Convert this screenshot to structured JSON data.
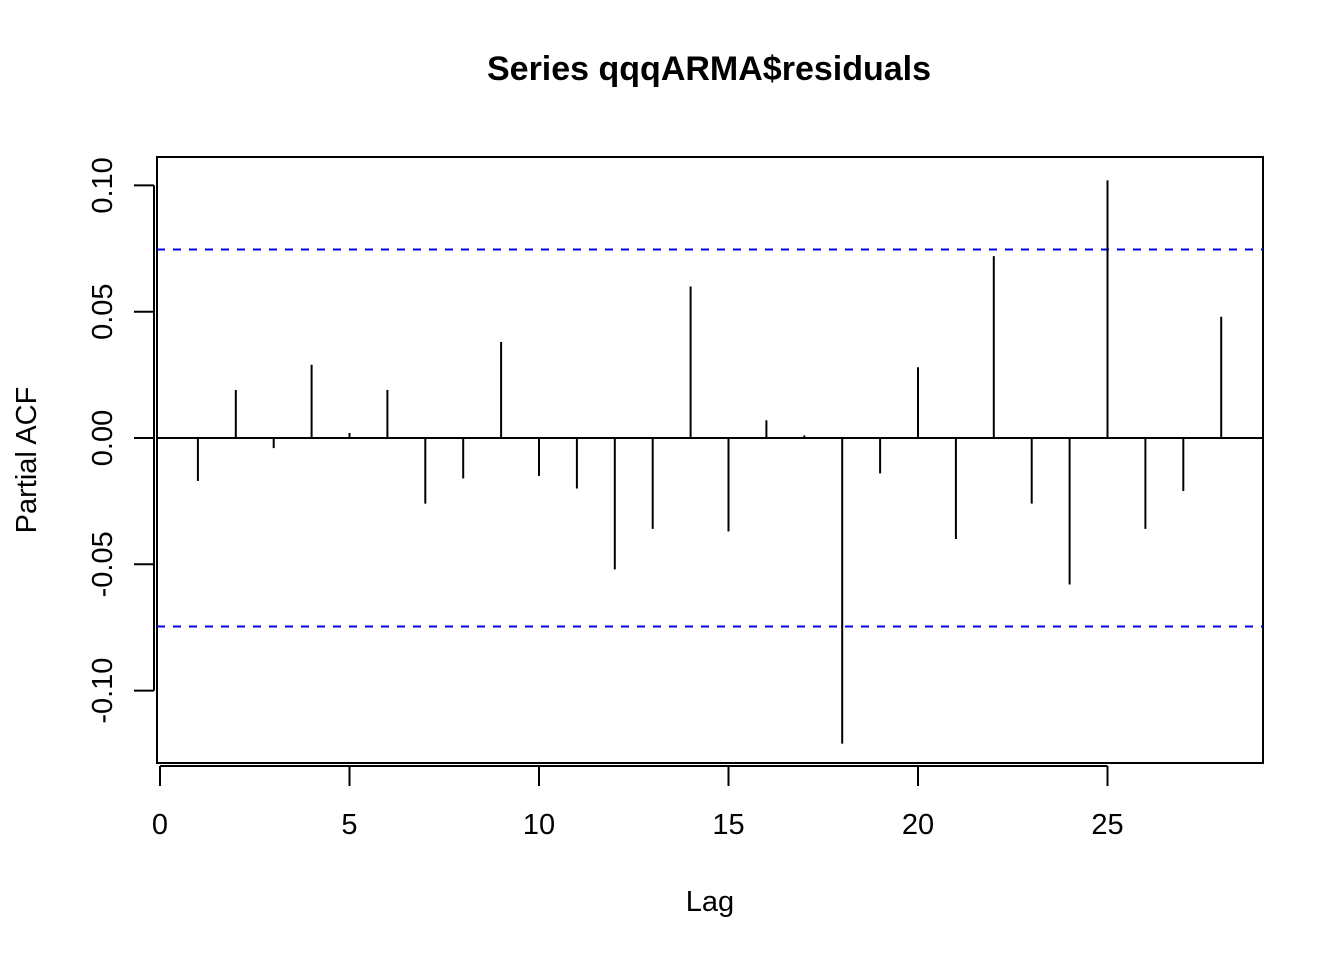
{
  "chart_data": {
    "type": "bar",
    "title": "Series  qqqARMA$residuals",
    "xlabel": "Lag",
    "ylabel": "Partial ACF",
    "xlim": [
      0,
      29
    ],
    "ylim": [
      -0.12,
      0.12
    ],
    "xticks": [
      0,
      5,
      10,
      15,
      20,
      25
    ],
    "yticks": [
      -0.1,
      -0.05,
      0.0,
      0.05,
      0.1
    ],
    "ytick_labels": [
      "-0.10",
      "-0.05",
      "0.00",
      "0.05",
      "0.10"
    ],
    "lags": [
      1,
      2,
      3,
      4,
      5,
      6,
      7,
      8,
      9,
      10,
      11,
      12,
      13,
      14,
      15,
      16,
      17,
      18,
      19,
      20,
      21,
      22,
      23,
      24,
      25,
      26,
      27,
      28
    ],
    "values": [
      -0.017,
      0.019,
      -0.004,
      0.029,
      0.002,
      0.019,
      -0.026,
      -0.016,
      0.038,
      -0.015,
      -0.02,
      -0.052,
      -0.036,
      0.06,
      -0.037,
      0.007,
      0.001,
      -0.121,
      -0.014,
      0.028,
      -0.04,
      0.072,
      -0.026,
      -0.058,
      0.102,
      -0.036,
      -0.021,
      0.048
    ],
    "confidence_bound": 0.0746,
    "colors": {
      "bars": "#000000",
      "bounds": "#0000ee",
      "frame": "#000000"
    },
    "grid": false
  }
}
